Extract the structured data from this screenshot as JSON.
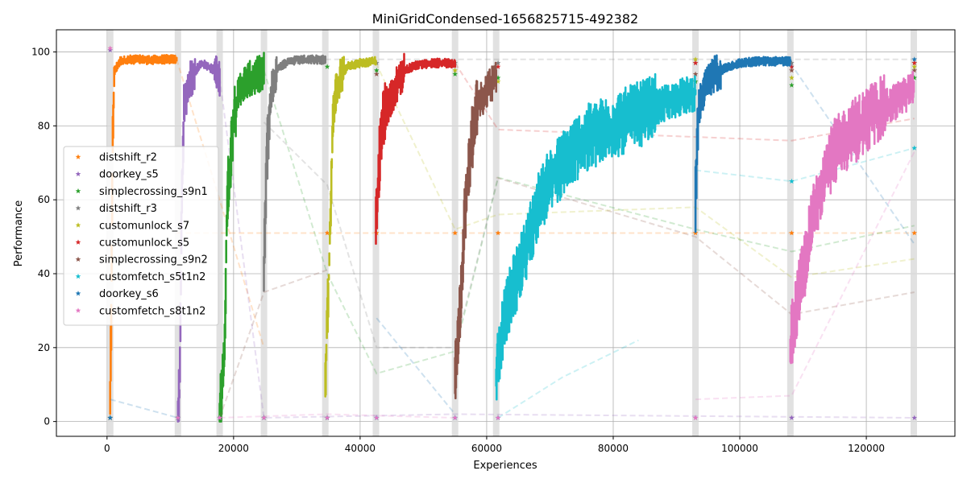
{
  "chart_data": {
    "type": "scatter",
    "title": "MiniGridCondensed-1656825715-492382",
    "xlabel": "Experiences",
    "ylabel": "Performance",
    "xlim": [
      -8000,
      134000
    ],
    "ylim": [
      -4,
      106
    ],
    "xticks": [
      0,
      20000,
      40000,
      60000,
      80000,
      100000,
      120000
    ],
    "yticks": [
      0,
      20,
      40,
      60,
      80,
      100
    ],
    "grid": true,
    "legend_position": "center-left",
    "task_boundaries": [
      500,
      11200,
      17800,
      24800,
      34500,
      42500,
      55000,
      61500,
      93000,
      108000,
      127500
    ],
    "series": [
      {
        "name": "distshift_r2",
        "color": "#ff7f0e",
        "learning": [
          [
            500,
            8
          ],
          [
            700,
            30
          ],
          [
            900,
            80
          ],
          [
            1200,
            95
          ],
          [
            2000,
            97.5
          ],
          [
            4000,
            98
          ],
          [
            7000,
            97.8
          ],
          [
            9000,
            98
          ],
          [
            11000,
            98
          ]
        ],
        "eval": [
          [
            34800,
            51
          ],
          [
            42600,
            51
          ],
          [
            55000,
            51
          ],
          [
            61800,
            51
          ],
          [
            93000,
            51
          ],
          [
            108200,
            51
          ],
          [
            127600,
            51
          ]
        ],
        "lines": [
          [
            [
              11000,
              98
            ],
            [
              17800,
              60
            ],
            [
              24800,
              20
            ]
          ],
          [
            [
              11000,
              51
            ],
            [
              34800,
              51
            ],
            [
              55000,
              51
            ],
            [
              93000,
              51
            ],
            [
              127600,
              51
            ]
          ]
        ]
      },
      {
        "name": "doorkey_s5",
        "color": "#9467bd",
        "learning": [
          [
            11200,
            1
          ],
          [
            11500,
            10
          ],
          [
            11800,
            60
          ],
          [
            12200,
            85
          ],
          [
            13000,
            92
          ],
          [
            14000,
            95
          ],
          [
            15000,
            97
          ],
          [
            16000,
            96
          ],
          [
            17000,
            95
          ],
          [
            17800,
            93
          ]
        ],
        "eval": [
          [
            500,
            100.5
          ],
          [
            24800,
            1
          ],
          [
            34800,
            1
          ],
          [
            42600,
            1
          ],
          [
            55000,
            1
          ],
          [
            61800,
            1
          ],
          [
            93000,
            1
          ],
          [
            108200,
            1
          ],
          [
            127600,
            1
          ]
        ],
        "lines": [
          [
            [
              17800,
              93
            ],
            [
              24800,
              1
            ],
            [
              55000,
              2
            ],
            [
              127600,
              1
            ]
          ]
        ]
      },
      {
        "name": "simplecrossing_s9n1",
        "color": "#2ca02c",
        "learning": [
          [
            17800,
            1
          ],
          [
            18500,
            15
          ],
          [
            19000,
            60
          ],
          [
            20000,
            82
          ],
          [
            21000,
            90
          ],
          [
            22000,
            92
          ],
          [
            23000,
            93
          ],
          [
            24000,
            94
          ],
          [
            24800,
            95
          ]
        ],
        "eval": [
          [
            500,
            1
          ],
          [
            11200,
            1
          ],
          [
            34800,
            96
          ],
          [
            42600,
            95
          ],
          [
            55000,
            94
          ],
          [
            61800,
            93
          ],
          [
            93000,
            92
          ],
          [
            108200,
            91
          ],
          [
            127600,
            93
          ]
        ],
        "lines": [
          [
            [
              24800,
              95
            ],
            [
              34800,
              40
            ],
            [
              42600,
              13
            ],
            [
              55000,
              19
            ],
            [
              61800,
              66
            ],
            [
              93000,
              52
            ],
            [
              108200,
              46
            ],
            [
              127600,
              53
            ]
          ]
        ]
      },
      {
        "name": "distshift_r3",
        "color": "#7f7f7f",
        "learning": [
          [
            24800,
            41
          ],
          [
            25200,
            70
          ],
          [
            26000,
            90
          ],
          [
            27000,
            96
          ],
          [
            29000,
            97.5
          ],
          [
            31000,
            98
          ],
          [
            33000,
            98
          ],
          [
            34500,
            97.8
          ]
        ],
        "eval": [
          [
            500,
            1
          ],
          [
            11200,
            1
          ],
          [
            17800,
            1
          ],
          [
            42600,
            97
          ],
          [
            55000,
            97
          ],
          [
            61800,
            97
          ],
          [
            93000,
            97
          ],
          [
            108200,
            97
          ],
          [
            127600,
            97
          ]
        ],
        "lines": [
          [
            [
              34500,
              98
            ],
            [
              42600,
              98
            ],
            [
              55000,
              98
            ],
            [
              93000,
              98
            ],
            [
              127600,
              98
            ]
          ],
          [
            [
              24800,
              81
            ],
            [
              34800,
              64
            ],
            [
              42600,
              20
            ],
            [
              55000,
              20
            ],
            [
              61800,
              66
            ]
          ]
        ]
      },
      {
        "name": "customunlock_s7",
        "color": "#bcbd22",
        "learning": [
          [
            34500,
            12
          ],
          [
            35000,
            35
          ],
          [
            35600,
            75
          ],
          [
            36000,
            88
          ],
          [
            37000,
            94
          ],
          [
            38000,
            96
          ],
          [
            40000,
            97
          ],
          [
            42500,
            97.5
          ]
        ],
        "eval": [
          [
            500,
            1
          ],
          [
            11200,
            1
          ],
          [
            17800,
            1
          ],
          [
            24800,
            1
          ],
          [
            55000,
            95
          ],
          [
            61800,
            92
          ],
          [
            93000,
            98
          ],
          [
            108200,
            93
          ],
          [
            127600,
            96
          ]
        ],
        "lines": [
          [
            [
              42500,
              97
            ],
            [
              55000,
              52
            ],
            [
              61800,
              56
            ],
            [
              93000,
              58
            ],
            [
              108200,
              39
            ],
            [
              127600,
              44
            ]
          ]
        ]
      },
      {
        "name": "customunlock_s5",
        "color": "#d62728",
        "learning": [
          [
            42500,
            53
          ],
          [
            43000,
            70
          ],
          [
            43500,
            82
          ],
          [
            44500,
            86
          ],
          [
            46000,
            92
          ],
          [
            47000,
            95
          ],
          [
            49000,
            96.5
          ],
          [
            52000,
            97
          ],
          [
            55000,
            97
          ]
        ],
        "eval": [
          [
            500,
            1
          ],
          [
            11200,
            1
          ],
          [
            17800,
            1
          ],
          [
            24800,
            1
          ],
          [
            34800,
            1
          ],
          [
            61800,
            96
          ],
          [
            93000,
            97
          ],
          [
            108200,
            96
          ],
          [
            127600,
            97
          ]
        ],
        "lines": [
          [
            [
              55000,
              97
            ],
            [
              61800,
              79
            ],
            [
              93000,
              77
            ],
            [
              108200,
              76
            ],
            [
              127600,
              82
            ]
          ]
        ]
      },
      {
        "name": "simplecrossing_s9n2",
        "color": "#8c564b",
        "learning": [
          [
            55000,
            12
          ],
          [
            55800,
            30
          ],
          [
            56500,
            55
          ],
          [
            57500,
            75
          ],
          [
            58500,
            85
          ],
          [
            60000,
            90
          ],
          [
            61500,
            93
          ]
        ],
        "eval": [
          [
            500,
            1
          ],
          [
            11200,
            1
          ],
          [
            17800,
            1
          ],
          [
            24800,
            1
          ],
          [
            34800,
            1
          ],
          [
            42600,
            94
          ],
          [
            93000,
            94
          ],
          [
            108200,
            95
          ],
          [
            127600,
            95
          ]
        ],
        "lines": [
          [
            [
              61500,
              66
            ],
            [
              93000,
              50
            ],
            [
              108200,
              29
            ],
            [
              127600,
              35
            ]
          ],
          [
            [
              17800,
              1
            ],
            [
              24800,
              35
            ],
            [
              34800,
              41
            ]
          ]
        ]
      },
      {
        "name": "customfetch_s5t1n2",
        "color": "#17becf",
        "learning": [
          [
            61500,
            13
          ],
          [
            62500,
            25
          ],
          [
            64000,
            35
          ],
          [
            66000,
            45
          ],
          [
            68000,
            58
          ],
          [
            70000,
            65
          ],
          [
            73000,
            72
          ],
          [
            76000,
            77
          ],
          [
            80000,
            80
          ],
          [
            84000,
            83
          ],
          [
            88000,
            86
          ],
          [
            91000,
            88
          ],
          [
            93000,
            89
          ]
        ],
        "eval": [
          [
            500,
            1
          ],
          [
            11200,
            1
          ],
          [
            17800,
            1
          ],
          [
            24800,
            1
          ],
          [
            34800,
            1
          ],
          [
            42600,
            1
          ],
          [
            55000,
            1
          ],
          [
            108200,
            65
          ],
          [
            127600,
            74
          ]
        ],
        "lines": [
          [
            [
              93000,
              68
            ],
            [
              108200,
              65
            ],
            [
              127600,
              74
            ]
          ],
          [
            [
              61800,
              1
            ],
            [
              72000,
              12
            ],
            [
              84000,
              22
            ]
          ]
        ]
      },
      {
        "name": "doorkey_s6",
        "color": "#1f77b4",
        "learning": [
          [
            93000,
            60
          ],
          [
            93500,
            85
          ],
          [
            94500,
            90
          ],
          [
            96000,
            94
          ],
          [
            98000,
            96
          ],
          [
            100000,
            97
          ],
          [
            103000,
            97.5
          ],
          [
            106000,
            97.5
          ],
          [
            108000,
            97.5
          ]
        ],
        "eval": [
          [
            500,
            1
          ],
          [
            11200,
            1
          ],
          [
            17800,
            1
          ],
          [
            24800,
            1
          ],
          [
            34800,
            1
          ],
          [
            42600,
            1
          ],
          [
            55000,
            1
          ],
          [
            61800,
            1
          ],
          [
            127600,
            98
          ]
        ],
        "lines": [
          [
            [
              108000,
              97
            ],
            [
              127600,
              48
            ]
          ],
          [
            [
              500,
              6
            ],
            [
              11200,
              1
            ]
          ],
          [
            [
              42600,
              28
            ],
            [
              55000,
              2
            ]
          ]
        ]
      },
      {
        "name": "customfetch_s8t1n2",
        "color": "#e377c2",
        "learning": [
          [
            108000,
            21
          ],
          [
            108800,
            30
          ],
          [
            110000,
            40
          ],
          [
            111500,
            55
          ],
          [
            113000,
            65
          ],
          [
            115000,
            73
          ],
          [
            117000,
            77
          ],
          [
            119000,
            80
          ],
          [
            121000,
            83
          ],
          [
            123000,
            85
          ],
          [
            125000,
            87
          ],
          [
            127500,
            90
          ]
        ],
        "eval": [
          [
            500,
            101
          ],
          [
            11200,
            1
          ],
          [
            17800,
            1
          ],
          [
            24800,
            1
          ],
          [
            34800,
            1
          ],
          [
            42600,
            1
          ],
          [
            55000,
            1
          ],
          [
            61800,
            1
          ],
          [
            93000,
            1
          ]
        ],
        "lines": [
          [
            [
              93000,
              6
            ],
            [
              108200,
              7
            ],
            [
              127600,
              73
            ]
          ],
          [
            [
              17800,
              1
            ],
            [
              34800,
              2
            ],
            [
              55000,
              1
            ]
          ]
        ]
      }
    ]
  }
}
